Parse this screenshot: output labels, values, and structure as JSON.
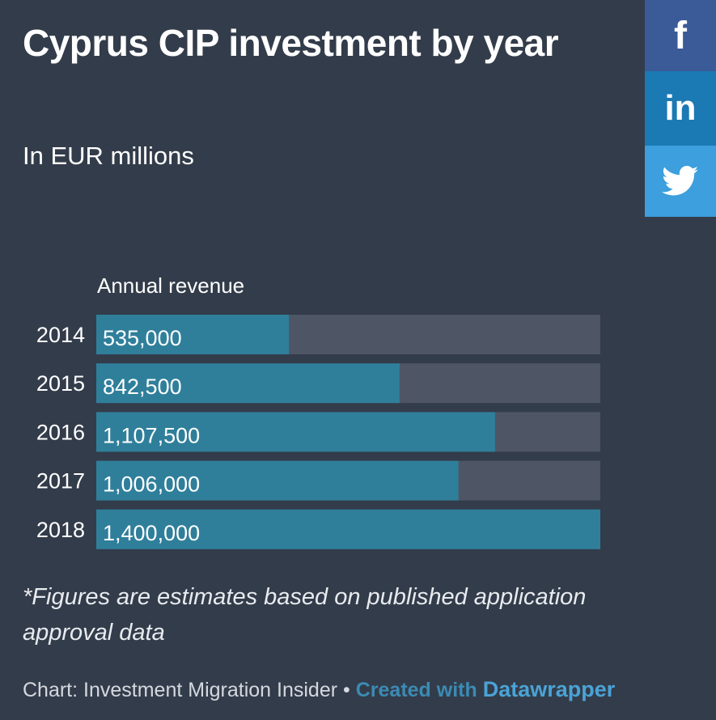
{
  "title": "Cyprus CIP investment by year",
  "subtitle": "In EUR millions",
  "column_header": "Annual revenue",
  "footnote": "*Figures are estimates based on published application approval data",
  "credit": {
    "source": "Chart: Investment Migration Insider",
    "separator": "•",
    "created_with": "Created with",
    "tool": "Datawrapper"
  },
  "social": {
    "facebook_glyph": "f",
    "linkedin_glyph": "in"
  },
  "colors": {
    "background": "#333c4a",
    "bar": "#2f7f9b",
    "track": "#4e5665",
    "facebook": "#3a5a98",
    "linkedin": "#1b79b4",
    "twitter": "#3d9fdd"
  },
  "chart_data": {
    "type": "bar",
    "orientation": "horizontal",
    "categories": [
      "2014",
      "2015",
      "2016",
      "2017",
      "2018"
    ],
    "values": [
      535000,
      842500,
      1107500,
      1006000,
      1400000
    ],
    "value_labels": [
      "535,000",
      "842,500",
      "1,107,500",
      "1,006,000",
      "1,400,000"
    ],
    "xlim": [
      0,
      1400000
    ],
    "grid": false,
    "legend": "none"
  }
}
